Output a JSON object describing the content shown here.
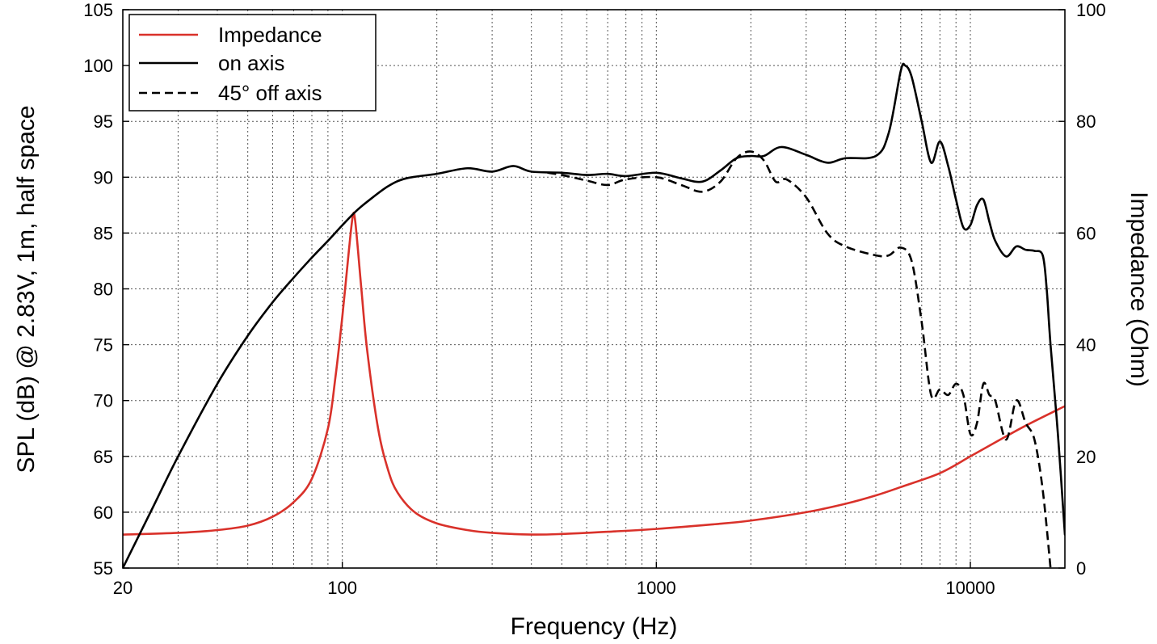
{
  "chart_data": {
    "type": "line",
    "xlabel": "Frequency (Hz)",
    "ylabel_left": "SPL (dB) @ 2.83V, 1m, half space",
    "ylabel_right": "Impedance (Ohm)",
    "x_scale": "log",
    "xlim": [
      20,
      20000
    ],
    "ylim_left": [
      55,
      105
    ],
    "ylim_right": [
      0,
      100
    ],
    "x_ticks": [
      20,
      100,
      1000,
      10000
    ],
    "x_tick_labels": [
      "20",
      "100",
      "1000",
      "10000"
    ],
    "y_left_ticks": [
      55,
      60,
      65,
      70,
      75,
      80,
      85,
      90,
      95,
      100,
      105
    ],
    "y_left_tick_labels": [
      "55",
      "60",
      "65",
      "70",
      "75",
      "80",
      "85",
      "90",
      "95",
      "100",
      "105"
    ],
    "y_right_ticks": [
      0,
      20,
      40,
      60,
      80,
      100
    ],
    "y_right_tick_labels": [
      "0",
      "20",
      "40",
      "60",
      "80",
      "100"
    ],
    "grid": true,
    "legend_position": "top-left",
    "series": [
      {
        "name": "Impedance",
        "axis": "right",
        "color": "#d9312a",
        "style": "solid",
        "points": [
          [
            20,
            6
          ],
          [
            30,
            6.3
          ],
          [
            40,
            6.8
          ],
          [
            50,
            7.6
          ],
          [
            60,
            9.2
          ],
          [
            70,
            11.8
          ],
          [
            80,
            16
          ],
          [
            90,
            25
          ],
          [
            95,
            34
          ],
          [
            100,
            45
          ],
          [
            105,
            57
          ],
          [
            108,
            63
          ],
          [
            110,
            62
          ],
          [
            115,
            50
          ],
          [
            120,
            39
          ],
          [
            130,
            25
          ],
          [
            140,
            17.5
          ],
          [
            150,
            13.5
          ],
          [
            170,
            10
          ],
          [
            200,
            8
          ],
          [
            250,
            6.8
          ],
          [
            300,
            6.3
          ],
          [
            400,
            6
          ],
          [
            500,
            6.1
          ],
          [
            700,
            6.5
          ],
          [
            1000,
            7
          ],
          [
            1500,
            7.8
          ],
          [
            2000,
            8.5
          ],
          [
            3000,
            10
          ],
          [
            4000,
            11.5
          ],
          [
            5000,
            13
          ],
          [
            6000,
            14.5
          ],
          [
            8000,
            17
          ],
          [
            10000,
            20
          ],
          [
            12000,
            22.5
          ],
          [
            15000,
            25.5
          ],
          [
            20000,
            29
          ]
        ]
      },
      {
        "name": "on axis",
        "axis": "left",
        "color": "#000000",
        "style": "solid",
        "points": [
          [
            20,
            55
          ],
          [
            25,
            60.5
          ],
          [
            30,
            65
          ],
          [
            40,
            71.5
          ],
          [
            50,
            75.8
          ],
          [
            60,
            78.8
          ],
          [
            70,
            81
          ],
          [
            80,
            82.8
          ],
          [
            90,
            84.3
          ],
          [
            100,
            85.7
          ],
          [
            110,
            86.9
          ],
          [
            120,
            87.8
          ],
          [
            140,
            89.2
          ],
          [
            160,
            89.9
          ],
          [
            200,
            90.3
          ],
          [
            250,
            90.8
          ],
          [
            300,
            90.5
          ],
          [
            350,
            91
          ],
          [
            400,
            90.5
          ],
          [
            500,
            90.4
          ],
          [
            600,
            90.2
          ],
          [
            700,
            90.3
          ],
          [
            800,
            90.1
          ],
          [
            1000,
            90.4
          ],
          [
            1200,
            89.9
          ],
          [
            1400,
            89.6
          ],
          [
            1600,
            90.6
          ],
          [
            1800,
            91.7
          ],
          [
            2000,
            91.9
          ],
          [
            2200,
            91.9
          ],
          [
            2500,
            92.7
          ],
          [
            3000,
            92
          ],
          [
            3500,
            91.3
          ],
          [
            4000,
            91.7
          ],
          [
            5000,
            91.9
          ],
          [
            5500,
            94
          ],
          [
            6000,
            99.5
          ],
          [
            6200,
            100
          ],
          [
            6500,
            99
          ],
          [
            7000,
            95
          ],
          [
            7500,
            91.3
          ],
          [
            8000,
            93.2
          ],
          [
            8500,
            91
          ],
          [
            9000,
            88
          ],
          [
            9500,
            85.5
          ],
          [
            10000,
            85.7
          ],
          [
            10500,
            87.5
          ],
          [
            11000,
            88
          ],
          [
            11500,
            86
          ],
          [
            12000,
            84.3
          ],
          [
            13000,
            82.9
          ],
          [
            14000,
            83.8
          ],
          [
            15000,
            83.5
          ],
          [
            16000,
            83.4
          ],
          [
            17000,
            83
          ],
          [
            17500,
            80
          ],
          [
            18000,
            75
          ],
          [
            19000,
            67
          ],
          [
            20000,
            58
          ]
        ]
      },
      {
        "name": "45° off axis",
        "axis": "left",
        "color": "#000000",
        "style": "dashed",
        "points": [
          [
            450,
            90.4
          ],
          [
            500,
            90.2
          ],
          [
            600,
            89.7
          ],
          [
            700,
            89.3
          ],
          [
            800,
            89.8
          ],
          [
            1000,
            90
          ],
          [
            1200,
            89.3
          ],
          [
            1400,
            88.7
          ],
          [
            1600,
            89.6
          ],
          [
            1800,
            91.7
          ],
          [
            2000,
            92.3
          ],
          [
            2200,
            91.5
          ],
          [
            2400,
            89.6
          ],
          [
            2600,
            89.8
          ],
          [
            3000,
            88.2
          ],
          [
            3500,
            85
          ],
          [
            4000,
            83.8
          ],
          [
            5000,
            83
          ],
          [
            5500,
            83
          ],
          [
            6000,
            83.7
          ],
          [
            6500,
            82.5
          ],
          [
            7000,
            77
          ],
          [
            7500,
            70.5
          ],
          [
            8000,
            71
          ],
          [
            8500,
            70.5
          ],
          [
            9000,
            71.5
          ],
          [
            9500,
            70.5
          ],
          [
            10000,
            67
          ],
          [
            10500,
            68
          ],
          [
            11000,
            71.5
          ],
          [
            11500,
            70.5
          ],
          [
            12000,
            70
          ],
          [
            13000,
            66.5
          ],
          [
            14000,
            70
          ],
          [
            15000,
            68
          ],
          [
            16000,
            66.5
          ],
          [
            17000,
            62
          ],
          [
            18000,
            55
          ]
        ]
      }
    ]
  }
}
